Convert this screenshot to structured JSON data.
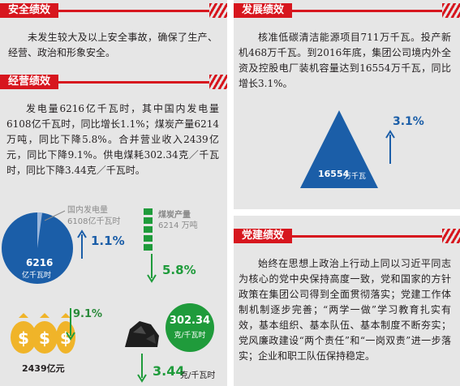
{
  "safety": {
    "title": "安全绩效",
    "text": "未发生较大及以上安全事故，确保了生产、经营、政治和形象安全。"
  },
  "operations": {
    "title": "经营绩效",
    "text": "发电量6216亿千瓦时，其中国内发电量6108亿千瓦时，同比增长1.1%；煤炭产量6214万吨，同比下降5.8%。合并营业收入2439亿元，同比下降9.1%。供电煤耗302.34克／千瓦时，同比下降3.44克／千瓦时。",
    "pie": {
      "domestic_label": "国内发电量",
      "domestic_value": "6108亿千瓦时",
      "total_value": "6216",
      "total_unit": "亿千瓦时",
      "growth": "1.1%"
    },
    "coal": {
      "label": "煤炭产量",
      "value": "6214 万吨",
      "change": "5.8%"
    },
    "revenue": {
      "value": "2439亿元",
      "change": "9.1%"
    },
    "coal_consumption": {
      "value": "302.34",
      "unit": "克/千瓦时",
      "change": "3.44",
      "change_unit": "克/千瓦时"
    }
  },
  "development": {
    "title": "发展绩效",
    "text": "核准低碳清洁能源项目711万千瓦。投产新机468万千瓦。到2016年底，集团公司境内外全资及控股电厂装机容量达到16554万千瓦，同比增长3.1%。",
    "capacity_value": "16554",
    "capacity_unit": "万千瓦",
    "growth": "3.1%"
  },
  "party": {
    "title": "党建绩效",
    "text": "始终在思想上政治上行动上同以习近平同志为核心的党中央保持高度一致，党和国家的方针政策在集团公司得到全面贯彻落实；党建工作体制机制逐步完善；“两学一做”学习教育扎实有效，基本组织、基本队伍、基本制度不断夯实；党风廉政建设“两个责任”和“一岗双责”进一步落实；企业和职工队伍保持稳定。"
  },
  "colors": {
    "red": "#d7161e",
    "blue": "#1b5ea8",
    "green": "#1f9b3b",
    "gold": "#f0b429",
    "panel": "#e6e6e6"
  }
}
